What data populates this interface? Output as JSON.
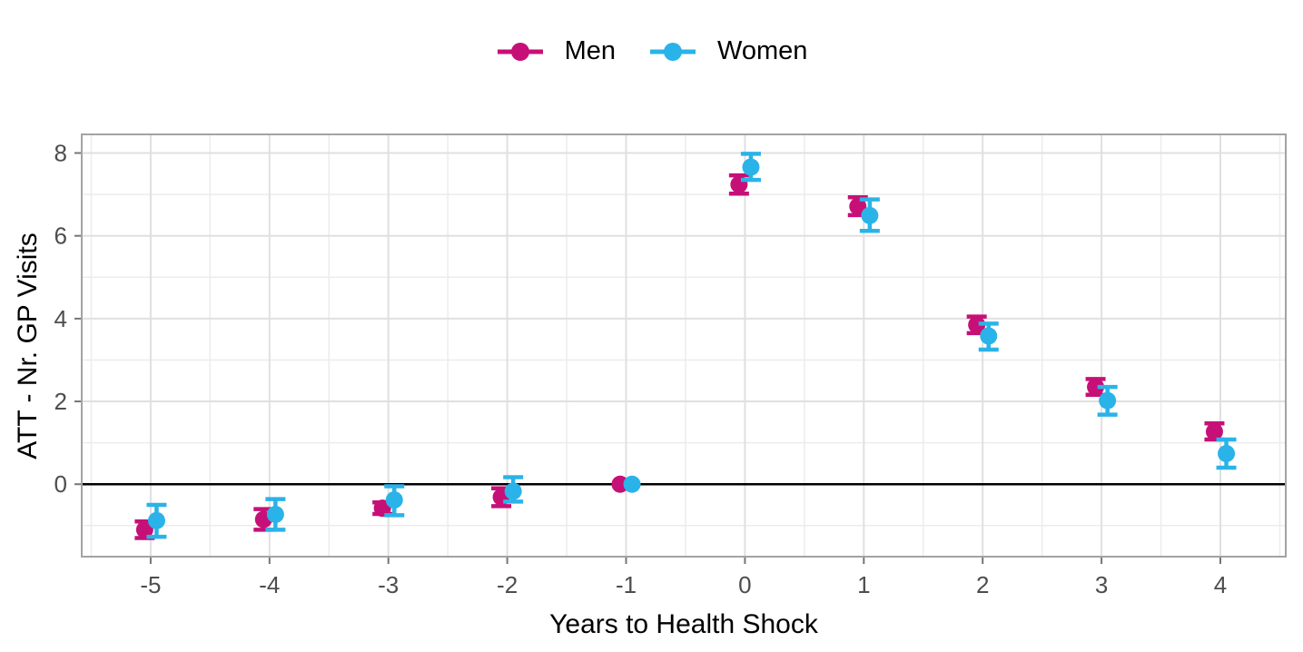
{
  "figure": {
    "background": "#ffffff",
    "panel_border_color": "#a3a3a3",
    "grid_major_color": "#e0e0e0",
    "grid_minor_color": "#ececec",
    "tick_mark_color": "#757575",
    "tick_label_color": "#4d4d4d",
    "zero_line_color": "#000000"
  },
  "chart_data": {
    "type": "scatter",
    "title": "",
    "xlabel": "Years to Health Shock",
    "ylabel": "ATT - Nr. GP Visits",
    "x_ticks": [
      -5,
      -4,
      -3,
      -2,
      -1,
      0,
      1,
      2,
      3,
      4
    ],
    "y_ticks": [
      0,
      2,
      4,
      6,
      8
    ],
    "xlim": [
      -5.58,
      4.55
    ],
    "ylim": [
      -1.75,
      8.45
    ],
    "grid": true,
    "legend_position": "top",
    "reference_line_y": 0,
    "error_bars": true,
    "point_dodge": 0.05,
    "series": [
      {
        "name": "Men",
        "color": "#c61077",
        "x_offset": -0.05,
        "x": [
          -5,
          -4,
          -3,
          -2,
          -1,
          0,
          1,
          2,
          3,
          4
        ],
        "y": [
          -1.1,
          -0.85,
          -0.58,
          -0.31,
          0,
          7.24,
          6.71,
          3.85,
          2.35,
          1.27
        ],
        "ci_low": [
          -1.3,
          -1.1,
          -0.72,
          -0.53,
          0,
          7.02,
          6.5,
          3.65,
          2.16,
          1.08
        ],
        "ci_high": [
          -0.9,
          -0.6,
          -0.44,
          -0.1,
          0,
          7.46,
          6.93,
          4.05,
          2.54,
          1.47
        ]
      },
      {
        "name": "Women",
        "color": "#2ab3e8",
        "x_offset": 0.05,
        "x": [
          -5,
          -4,
          -3,
          -2,
          -1,
          0,
          1,
          2,
          3,
          4
        ],
        "y": [
          -0.88,
          -0.73,
          -0.38,
          -0.17,
          0,
          7.66,
          6.49,
          3.58,
          2.02,
          0.74
        ],
        "ci_low": [
          -1.27,
          -1.1,
          -0.75,
          -0.42,
          0,
          7.35,
          6.12,
          3.25,
          1.68,
          0.4
        ],
        "ci_high": [
          -0.5,
          -0.36,
          -0.05,
          0.17,
          0,
          7.98,
          6.88,
          3.88,
          2.35,
          1.08
        ]
      }
    ]
  }
}
